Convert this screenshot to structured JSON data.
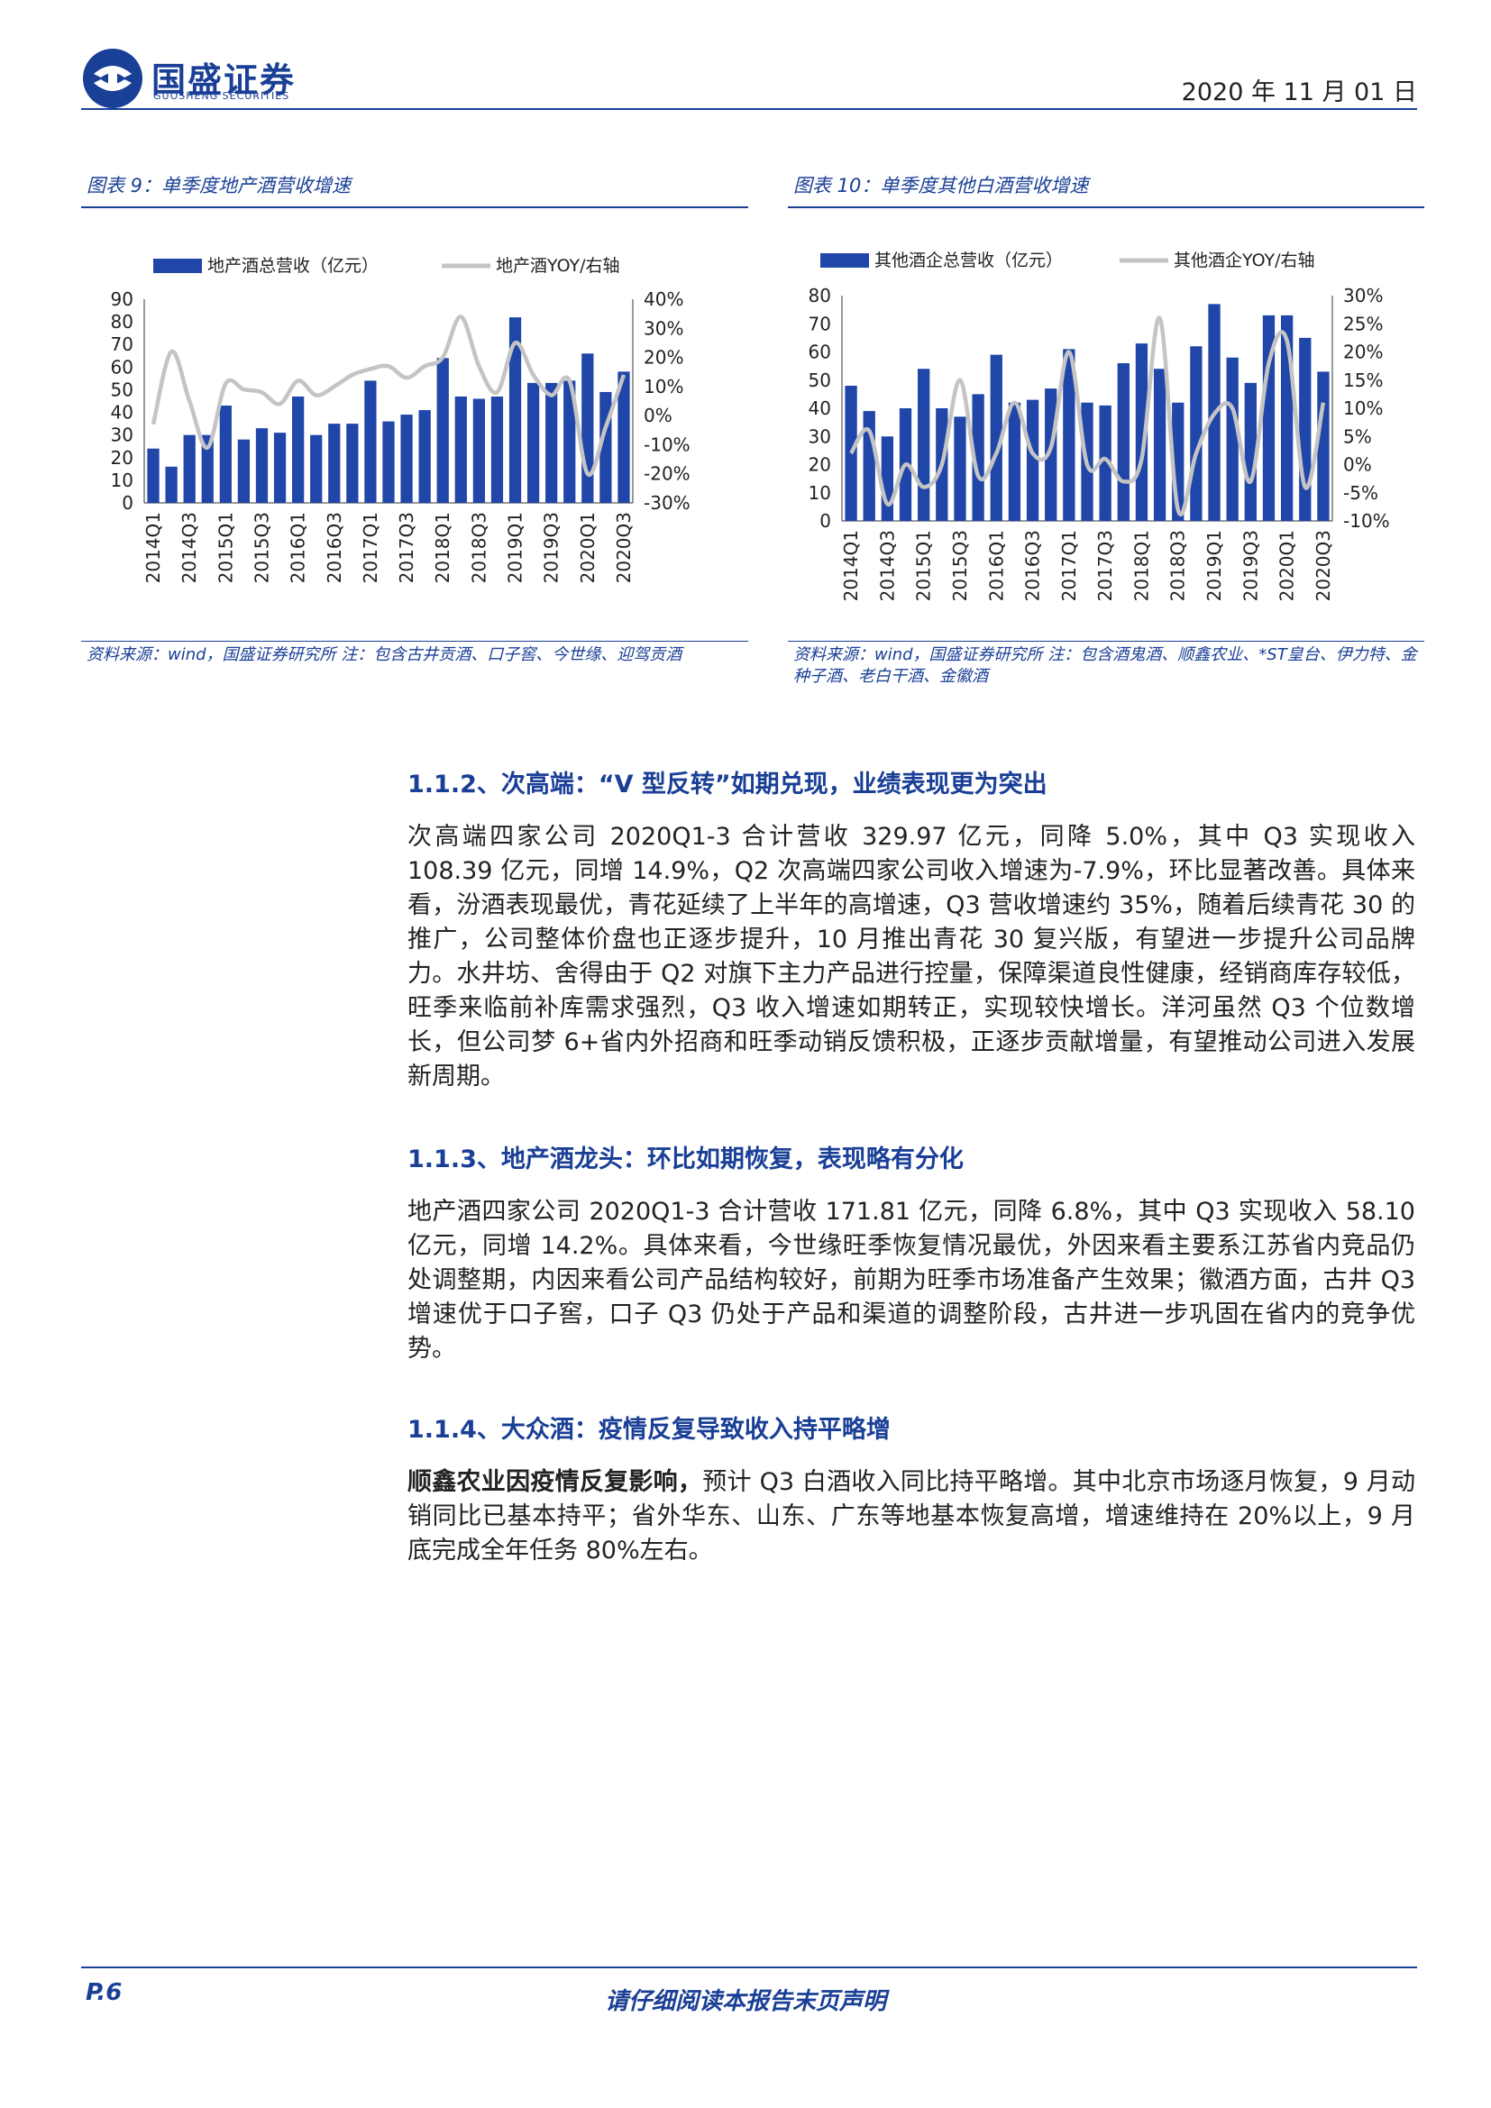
{
  "header": {
    "brand_cn": "国盛证券",
    "brand_en": "GUOSHENG SECURITIES",
    "date": "2020 年 11 月 01 日"
  },
  "colors": {
    "brand": "#1a3f96",
    "bar": "#1f46a8",
    "line": "#c4c4c4"
  },
  "chart_left": {
    "caption": "图表 9：单季度地产酒营收增速",
    "source": "资料来源：wind，国盛证券研究所 注：包含古井贡酒、口子窖、今世缘、迎驾贡酒",
    "chart_data": {
      "type": "bar",
      "bar_series_name": "地产酒总营收（亿元）",
      "line_series_name": "地产酒YOY/右轴",
      "categories": [
        "2014Q1",
        "2014Q2",
        "2014Q3",
        "2014Q4",
        "2015Q1",
        "2015Q2",
        "2015Q3",
        "2015Q4",
        "2016Q1",
        "2016Q2",
        "2016Q3",
        "2016Q4",
        "2017Q1",
        "2017Q2",
        "2017Q3",
        "2017Q4",
        "2018Q1",
        "2018Q2",
        "2018Q3",
        "2018Q4",
        "2019Q1",
        "2019Q2",
        "2019Q3",
        "2019Q4",
        "2020Q1",
        "2020Q2",
        "2020Q3"
      ],
      "x_tick_labels": [
        "2014Q1",
        "2014Q3",
        "2015Q1",
        "2015Q3",
        "2016Q1",
        "2016Q3",
        "2017Q1",
        "2017Q3",
        "2018Q1",
        "2018Q3",
        "2019Q1",
        "2019Q3",
        "2020Q1",
        "2020Q3"
      ],
      "bar_values": [
        24,
        16,
        30,
        30,
        43,
        28,
        33,
        31,
        47,
        30,
        35,
        35,
        54,
        36,
        39,
        41,
        64,
        47,
        46,
        47,
        82,
        53,
        53,
        54,
        66,
        49,
        58
      ],
      "line_values": [
        -3,
        22,
        5,
        -11,
        11,
        9,
        8,
        4,
        12,
        7,
        10,
        14,
        16,
        17,
        13,
        17,
        20,
        34,
        17,
        8,
        25,
        14,
        7,
        12,
        -20,
        -4,
        14
      ],
      "y_left_ticks": [
        "90",
        "80",
        "70",
        "60",
        "50",
        "40",
        "30",
        "20",
        "10",
        "0"
      ],
      "y_right_ticks": [
        "40%",
        "30%",
        "20%",
        "10%",
        "0%",
        "-10%",
        "-20%",
        "-30%"
      ],
      "ylim_left": [
        0,
        90
      ],
      "ylim_right": [
        -30,
        40
      ]
    }
  },
  "chart_right": {
    "caption": "图表 10：单季度其他白酒营收增速",
    "source": "资料来源：wind，国盛证券研究所 注：包含酒鬼酒、顺鑫农业、*ST皇台、伊力特、金种子酒、老白干酒、金徽酒",
    "chart_data": {
      "type": "bar",
      "bar_series_name": "其他酒企总营收（亿元）",
      "line_series_name": "其他酒企YOY/右轴",
      "categories": [
        "2014Q1",
        "2014Q2",
        "2014Q3",
        "2014Q4",
        "2015Q1",
        "2015Q2",
        "2015Q3",
        "2015Q4",
        "2016Q1",
        "2016Q2",
        "2016Q3",
        "2016Q4",
        "2017Q1",
        "2017Q2",
        "2017Q3",
        "2017Q4",
        "2018Q1",
        "2018Q2",
        "2018Q3",
        "2018Q4",
        "2019Q1",
        "2019Q2",
        "2019Q3",
        "2019Q4",
        "2020Q1",
        "2020Q2",
        "2020Q3"
      ],
      "x_tick_labels": [
        "2014Q1",
        "2014Q3",
        "2015Q1",
        "2015Q3",
        "2016Q1",
        "2016Q3",
        "2017Q1",
        "2017Q3",
        "2018Q1",
        "2018Q3",
        "2019Q1",
        "2019Q3",
        "2020Q1",
        "2020Q3"
      ],
      "bar_values": [
        48,
        39,
        30,
        40,
        54,
        40,
        37,
        45,
        59,
        42,
        43,
        47,
        61,
        42,
        41,
        56,
        63,
        54,
        42,
        62,
        77,
        58,
        49,
        73,
        73,
        65,
        53
      ],
      "line_values": [
        2,
        6,
        -7,
        0,
        -4,
        0,
        15,
        -2,
        2,
        11,
        2,
        3,
        20,
        0,
        1,
        -3,
        1,
        26,
        -8,
        2,
        9,
        10,
        -3,
        18,
        22,
        -4,
        11
      ],
      "y_left_ticks": [
        "80",
        "70",
        "60",
        "50",
        "40",
        "30",
        "20",
        "10",
        "0"
      ],
      "y_right_ticks": [
        "30%",
        "25%",
        "20%",
        "15%",
        "10%",
        "5%",
        "0%",
        "-5%",
        "-10%"
      ],
      "ylim_left": [
        0,
        80
      ],
      "ylim_right": [
        -10,
        30
      ]
    }
  },
  "sections": [
    {
      "heading": "1.1.2、次高端：“V 型反转”如期兑现，业绩表现更为突出",
      "lead": "",
      "text": "次高端四家公司 2020Q1-3 合计营收 329.97 亿元，同降 5.0%，其中 Q3 实现收入 108.39 亿元，同增 14.9%，Q2 次高端四家公司收入增速为-7.9%，环比显著改善。具体来看，汾酒表现最优，青花延续了上半年的高增速，Q3 营收增速约 35%，随着后续青花 30 的推广，公司整体价盘也正逐步提升，10 月推出青花 30 复兴版，有望进一步提升公司品牌力。水井坊、舍得由于 Q2 对旗下主力产品进行控量，保障渠道良性健康，经销商库存较低，旺季来临前补库需求强烈，Q3 收入增速如期转正，实现较快增长。洋河虽然 Q3 个位数增长，但公司梦 6+省内外招商和旺季动销反馈积极，正逐步贡献增量，有望推动公司进入发展新周期。"
    },
    {
      "heading": "1.1.3、地产酒龙头：环比如期恢复，表现略有分化",
      "lead": "",
      "text": "地产酒四家公司 2020Q1-3 合计营收 171.81 亿元，同降 6.8%，其中 Q3 实现收入 58.10 亿元，同增 14.2%。具体来看，今世缘旺季恢复情况最优，外因来看主要系江苏省内竞品仍处调整期，内因来看公司产品结构较好，前期为旺季市场准备产生效果；徽酒方面，古井 Q3 增速优于口子窖，口子 Q3 仍处于产品和渠道的调整阶段，古井进一步巩固在省内的竞争优势。"
    },
    {
      "heading": "1.1.4、大众酒：疫情反复导致收入持平略增",
      "lead": "顺鑫农业因疫情反复影响，",
      "text": "预计 Q3 白酒收入同比持平略增。其中北京市场逐月恢复，9 月动销同比已基本持平；省外华东、山东、广东等地基本恢复高增，增速维持在 20%以上，9 月底完成全年任务 80%左右。"
    }
  ],
  "footer": {
    "page": "P.6",
    "notice": "请仔细阅读本报告末页声明"
  }
}
